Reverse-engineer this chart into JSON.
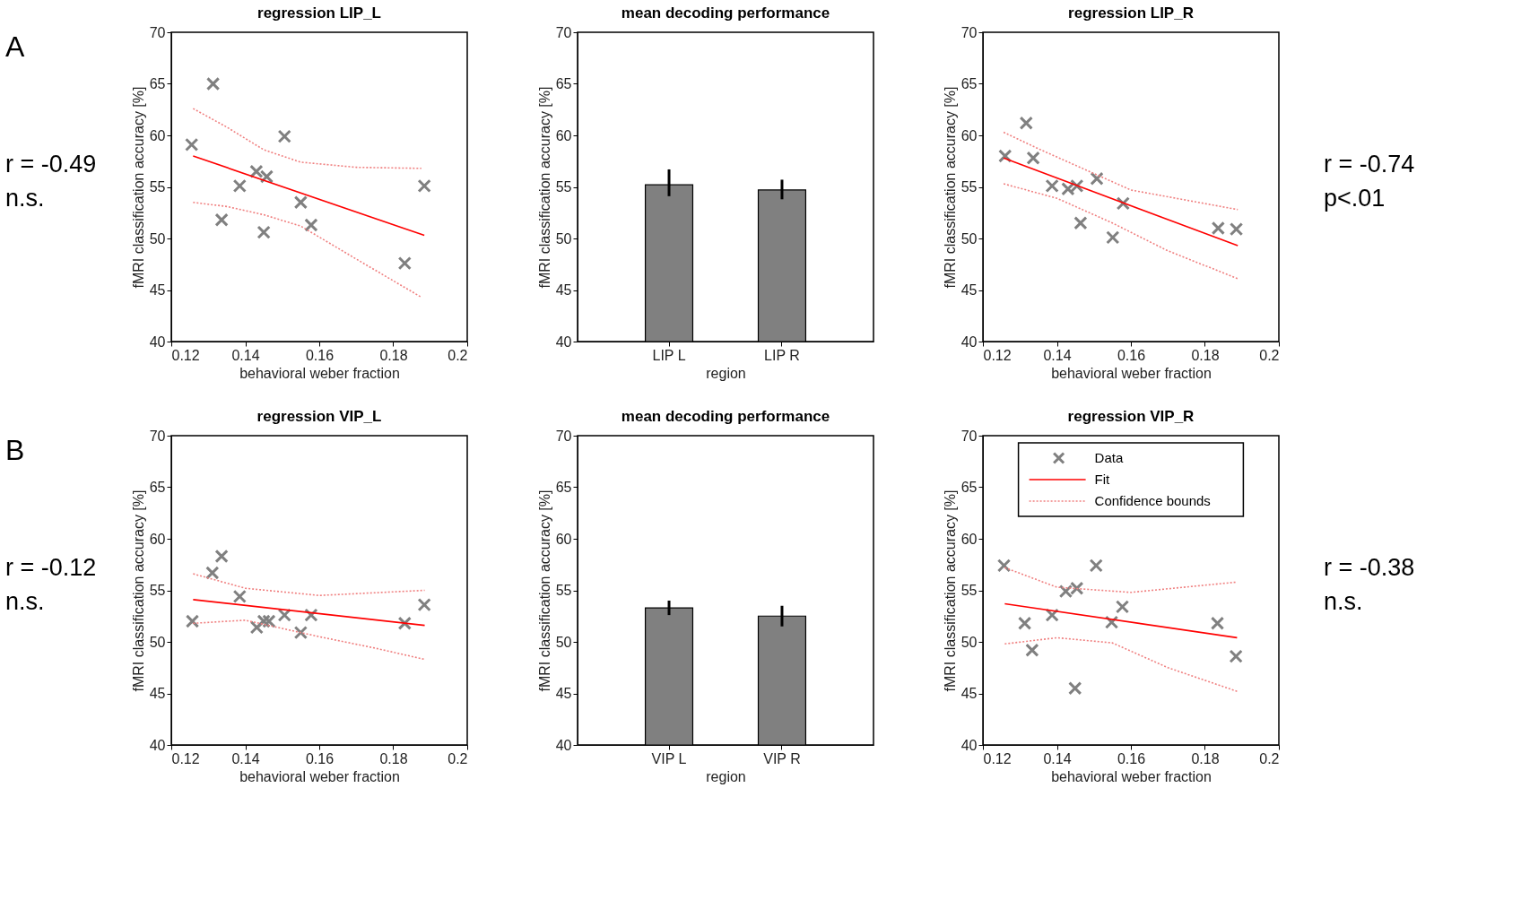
{
  "chart_data": [
    {
      "type": "scatter",
      "title": "regression LIP_L",
      "xlabel": "behavioral weber fraction",
      "ylabel": "fMRI classification accuracy [%]",
      "xlim": [
        0.12,
        0.2
      ],
      "xticks": [
        0.12,
        0.14,
        0.16,
        0.18,
        0.2
      ],
      "ylim": [
        40,
        70
      ],
      "yticks": [
        40,
        45,
        50,
        55,
        60,
        65,
        70
      ],
      "grid": false,
      "legend": false,
      "annotations": [
        "A",
        "r = -0.49",
        "n.s."
      ],
      "series": [
        {
          "type": "scatter",
          "marker": "cross",
          "color": "#808080",
          "x": [
            0.1255,
            0.1313,
            0.1336,
            0.1385,
            0.143,
            0.1458,
            0.145,
            0.1506,
            0.155,
            0.1578,
            0.1831,
            0.1884
          ],
          "values": [
            59.1,
            65.0,
            51.8,
            55.1,
            56.5,
            56.0,
            50.6,
            59.9,
            53.5,
            51.3,
            47.6,
            55.1
          ]
        },
        {
          "type": "line",
          "line_style": "solid",
          "color": "#ff0000",
          "x": [
            0.1259,
            0.1884
          ],
          "values": [
            58.0,
            50.3
          ]
        },
        {
          "type": "line",
          "line_style": "dotted",
          "color": "#f08080",
          "x": [
            0.1259,
            0.135,
            0.145,
            0.155,
            0.17,
            0.1876
          ],
          "values": [
            62.6,
            60.8,
            58.6,
            57.4,
            56.9,
            56.8
          ]
        },
        {
          "type": "line",
          "line_style": "dotted",
          "color": "#f08080",
          "x": [
            0.1259,
            0.135,
            0.145,
            0.155,
            0.17,
            0.1876
          ],
          "values": [
            53.5,
            53.1,
            52.3,
            51.2,
            48.0,
            44.3
          ]
        }
      ]
    },
    {
      "type": "bar",
      "title": "mean decoding performance",
      "xlabel": "region",
      "ylabel": "fMRI classification accuracy [%]",
      "ylim": [
        40,
        70
      ],
      "yticks": [
        40,
        45,
        50,
        55,
        60,
        65,
        70
      ],
      "grid": false,
      "legend": false,
      "categories": [
        "LIP L",
        "LIP R"
      ],
      "values": [
        55.2,
        54.7
      ],
      "errors": [
        [
          54.1,
          56.7
        ],
        [
          53.8,
          55.7
        ]
      ],
      "color": "#808080"
    },
    {
      "type": "scatter",
      "title": "regression LIP_R",
      "xlabel": "behavioral weber fraction",
      "ylabel": "fMRI classification accuracy [%]",
      "xlim": [
        0.12,
        0.2
      ],
      "xticks": [
        0.12,
        0.14,
        0.16,
        0.18,
        0.2
      ],
      "ylim": [
        40,
        70
      ],
      "yticks": [
        40,
        45,
        50,
        55,
        60,
        65,
        70
      ],
      "grid": false,
      "legend": false,
      "annotations": [
        "r = -0.74",
        "p<.01"
      ],
      "series": [
        {
          "type": "scatter",
          "marker": "cross",
          "color": "#808080",
          "x": [
            0.126,
            0.1317,
            0.1336,
            0.1387,
            0.143,
            0.1454,
            0.1464,
            0.1508,
            0.1551,
            0.1579,
            0.1836,
            0.1885
          ],
          "values": [
            58.0,
            61.2,
            57.8,
            55.1,
            54.8,
            55.1,
            51.5,
            55.8,
            50.1,
            53.4,
            51.0,
            50.9
          ]
        },
        {
          "type": "line",
          "line_style": "solid",
          "color": "#ff0000",
          "x": [
            0.1256,
            0.1889
          ],
          "values": [
            57.8,
            49.3
          ]
        },
        {
          "type": "line",
          "line_style": "dotted",
          "color": "#f08080",
          "x": [
            0.1256,
            0.135,
            0.15,
            0.16,
            0.1889
          ],
          "values": [
            60.3,
            58.7,
            56.3,
            54.7,
            52.8
          ]
        },
        {
          "type": "line",
          "line_style": "dotted",
          "color": "#f08080",
          "x": [
            0.1256,
            0.14,
            0.155,
            0.17,
            0.1889
          ],
          "values": [
            55.3,
            53.9,
            51.5,
            48.8,
            46.1
          ]
        }
      ]
    },
    {
      "type": "scatter",
      "title": "regression VIP_L",
      "xlabel": "behavioral weber fraction",
      "ylabel": "fMRI classification accuracy [%]",
      "xlim": [
        0.12,
        0.2
      ],
      "xticks": [
        0.12,
        0.14,
        0.16,
        0.18,
        0.2
      ],
      "ylim": [
        40,
        70
      ],
      "yticks": [
        40,
        45,
        50,
        55,
        60,
        65,
        70
      ],
      "grid": false,
      "legend": false,
      "annotations": [
        "B",
        "r = -0.12",
        "n.s."
      ],
      "series": [
        {
          "type": "scatter",
          "marker": "cross",
          "color": "#808080",
          "x": [
            0.1257,
            0.1311,
            0.1336,
            0.1385,
            0.1431,
            0.145,
            0.1464,
            0.1506,
            0.155,
            0.1578,
            0.1831,
            0.1884
          ],
          "values": [
            52.0,
            56.7,
            58.3,
            54.4,
            51.4,
            52.0,
            52.0,
            52.6,
            50.9,
            52.6,
            51.8,
            53.6
          ]
        },
        {
          "type": "line",
          "line_style": "solid",
          "color": "#ff0000",
          "x": [
            0.1259,
            0.1885
          ],
          "values": [
            54.1,
            51.6
          ]
        },
        {
          "type": "line",
          "line_style": "dotted",
          "color": "#f08080",
          "x": [
            0.1259,
            0.14,
            0.16,
            0.1885
          ],
          "values": [
            56.6,
            55.2,
            54.5,
            55.0
          ]
        },
        {
          "type": "line",
          "line_style": "dotted",
          "color": "#f08080",
          "x": [
            0.1259,
            0.14,
            0.16,
            0.175,
            0.1885
          ],
          "values": [
            51.8,
            52.1,
            50.5,
            49.4,
            48.3
          ]
        }
      ]
    },
    {
      "type": "bar",
      "title": "mean decoding performance",
      "xlabel": "region",
      "ylabel": "fMRI classification accuracy [%]",
      "ylim": [
        40,
        70
      ],
      "yticks": [
        40,
        45,
        50,
        55,
        60,
        65,
        70
      ],
      "grid": false,
      "legend": false,
      "categories": [
        "VIP L",
        "VIP R"
      ],
      "values": [
        53.3,
        52.5
      ],
      "errors": [
        [
          52.6,
          54.0
        ],
        [
          51.5,
          53.5
        ]
      ],
      "color": "#808080"
    },
    {
      "type": "scatter",
      "title": "regression VIP_R",
      "xlabel": "behavioral weber fraction",
      "ylabel": "fMRI classification accuracy [%]",
      "xlim": [
        0.12,
        0.2
      ],
      "xticks": [
        0.12,
        0.14,
        0.16,
        0.18,
        0.2
      ],
      "ylim": [
        40,
        70
      ],
      "yticks": [
        40,
        45,
        50,
        55,
        60,
        65,
        70
      ],
      "grid": false,
      "legend": "top",
      "annotations": [
        "r = -0.38",
        "n.s."
      ],
      "series": [
        {
          "name": "Data",
          "type": "scatter",
          "marker": "cross",
          "color": "#808080",
          "x": [
            0.1257,
            0.1313,
            0.1333,
            0.1387,
            0.1424,
            0.1454,
            0.1449,
            0.1506,
            0.1548,
            0.1577,
            0.1834,
            0.1884
          ],
          "values": [
            57.4,
            51.8,
            49.2,
            52.6,
            54.9,
            55.2,
            45.5,
            57.4,
            51.9,
            53.4,
            51.8,
            48.6
          ]
        },
        {
          "name": "Fit",
          "type": "line",
          "line_style": "solid",
          "color": "#ff0000",
          "x": [
            0.1259,
            0.1887
          ],
          "values": [
            53.7,
            50.4
          ]
        },
        {
          "name": "Confidence bounds",
          "type": "line",
          "line_style": "dotted",
          "color": "#f08080",
          "x": [
            0.1259,
            0.14,
            0.16,
            0.1887
          ],
          "values": [
            57.2,
            55.3,
            54.8,
            55.8
          ]
        },
        {
          "type": "line",
          "line_style": "dotted",
          "color": "#f08080",
          "x": [
            0.1259,
            0.14,
            0.155,
            0.17,
            0.1887
          ],
          "values": [
            49.8,
            50.4,
            49.9,
            47.5,
            45.2
          ]
        }
      ]
    }
  ]
}
